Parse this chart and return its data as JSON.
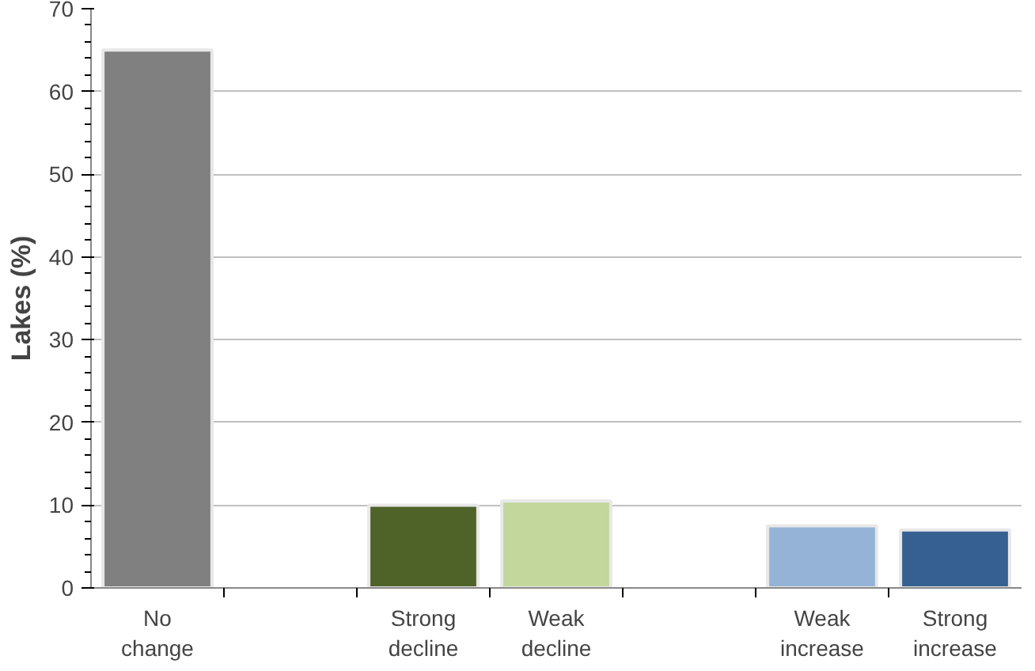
{
  "chart_data": {
    "type": "bar",
    "ylabel": "Lakes (%)",
    "categories": [
      "No change",
      null,
      "Strong decline",
      "Weak decline",
      null,
      "Weak increase",
      "Strong increase"
    ],
    "values": [
      65,
      null,
      10,
      10.5,
      null,
      7.5,
      7
    ],
    "colors": [
      "#808080",
      "#808080",
      "#4f6228",
      "#c3d69b",
      "#808080",
      "#95b3d7",
      "#376092"
    ],
    "ylim": [
      0,
      70
    ],
    "yticks": [
      0,
      10,
      20,
      30,
      40,
      50,
      60,
      70
    ],
    "grid": "y"
  }
}
